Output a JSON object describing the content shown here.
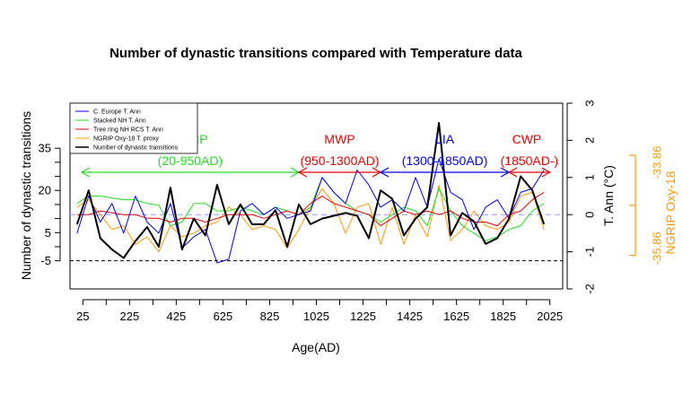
{
  "chart_data": {
    "type": "line",
    "title": "Number of dynastic transitions compared with Temperature data",
    "xlabel": "Age(AD)",
    "ylabel_left": "Number of dynastic transitions",
    "ylabel_right": "T. Ann (°C)",
    "ylabel_right2": "NGRIP Oxy-18",
    "xlim": [
      -30,
      2080
    ],
    "ylim_left": [
      -15,
      51
    ],
    "ylim_right": [
      -2,
      3
    ],
    "xticks": [
      "25",
      "225",
      "425",
      "625",
      "825",
      "1025",
      "1225",
      "1425",
      "1625",
      "1825",
      "2025"
    ],
    "yticks_left": [
      "-5",
      "5",
      "20",
      "35"
    ],
    "yticks_right": [
      "-2",
      "-1",
      "0",
      "1",
      "2",
      "3"
    ],
    "yticks_right2": [
      "-35.86",
      "-33.86"
    ],
    "colors": {
      "europe": "#0000ee",
      "stacked": "#22dd22",
      "treering": "#ee0000",
      "ngrip": "#ff9900",
      "dynastic": "#000000",
      "ngrip_axis": "#ff9900",
      "reference_line": "#9999ff"
    },
    "legend": {
      "placement": "top-left",
      "entries": [
        "C. Europe T. Ann",
        "Stacked NH T. Ann",
        "Tree ring NH RCS T. Ann",
        "NGRIP Oxy-18 T. proxy",
        "Number of dynastic transitions"
      ]
    },
    "periods": [
      {
        "name": "DACP",
        "range_label": "(20-950AD)",
        "start": 20,
        "end": 950,
        "color": "#22dd22"
      },
      {
        "name": "MWP",
        "range_label": "(950-1300AD)",
        "start": 950,
        "end": 1300,
        "color": "#ee0000"
      },
      {
        "name": "LIA",
        "range_label": "(1300-1850AD)",
        "start": 1300,
        "end": 1850,
        "color": "#0000ee"
      },
      {
        "name": "CWP",
        "range_label": "(1850AD-)",
        "start": 1850,
        "end": 2025,
        "color": "#ee0000"
      }
    ],
    "reference_lines": {
      "dynastic_zero": -5,
      "temperature_zero": 0
    },
    "x": [
      0,
      50,
      100,
      150,
      200,
      250,
      300,
      350,
      400,
      450,
      500,
      550,
      600,
      650,
      700,
      750,
      800,
      850,
      900,
      950,
      1000,
      1050,
      1100,
      1150,
      1200,
      1250,
      1300,
      1350,
      1400,
      1450,
      1500,
      1550,
      1600,
      1650,
      1700,
      1750,
      1800,
      1850,
      1900,
      1950,
      2000
    ],
    "series": [
      {
        "name": "Number of dynastic transitions",
        "axis": "left",
        "values": [
          8,
          20,
          3,
          -1,
          -4,
          2,
          7,
          0,
          21,
          -1,
          10,
          4,
          22,
          8,
          15,
          8,
          8,
          13,
          0,
          15,
          8,
          10,
          11,
          12,
          11,
          3,
          20,
          17,
          4,
          10,
          14,
          44,
          4,
          12,
          9,
          1,
          3,
          10,
          25,
          20,
          8
        ]
      },
      {
        "name": "C. Europe T. Ann",
        "axis": "right",
        "values": [
          -0.5,
          0.5,
          -0.2,
          0.3,
          -0.5,
          0.5,
          -0.2,
          -0.5,
          0.3,
          -0.9,
          -0.6,
          -0.4,
          -1.3,
          -1.2,
          0.1,
          0.3,
          0.0,
          0.2,
          -0.1,
          0.0,
          0.1,
          1.0,
          0.6,
          0.3,
          1.2,
          0.8,
          0.2,
          0.4,
          0.1,
          1.0,
          0.2,
          1.5,
          0.6,
          0.4,
          -0.4,
          0.2,
          0.4,
          -0.1,
          0.6,
          0.7,
          1.2
        ]
      },
      {
        "name": "Stacked NH T. Ann",
        "axis": "right",
        "values": [
          0.3,
          0.5,
          0.5,
          0.45,
          0.4,
          0.4,
          0.3,
          0.25,
          -0.3,
          -0.2,
          0.3,
          0.3,
          0.1,
          0.1,
          0.2,
          0.1,
          0.0,
          0.2,
          0.1,
          0.0,
          0.2,
          1.0,
          0.6,
          0.3,
          0.1,
          0.0,
          -0.2,
          0.0,
          0.2,
          0.1,
          -0.3,
          0.7,
          0.1,
          -0.3,
          -0.5,
          -0.7,
          -0.6,
          -0.4,
          -0.3,
          0.1,
          0.3
        ]
      },
      {
        "name": "Tree ring NH RCS T. Ann",
        "axis": "right",
        "values": [
          0.0,
          0.0,
          0.1,
          0.05,
          0.0,
          0.0,
          -0.1,
          -0.1,
          -0.2,
          -0.1,
          -0.1,
          -0.2,
          -0.1,
          0.0,
          0.0,
          0.0,
          -0.1,
          0.0,
          0.1,
          0.0,
          0.3,
          0.5,
          0.3,
          0.2,
          0.1,
          0.0,
          -0.3,
          -0.1,
          0.1,
          0.0,
          0.1,
          0.0,
          0.1,
          -0.1,
          -0.2,
          -0.2,
          -0.3,
          0.0,
          0.1,
          0.4,
          0.6
        ]
      },
      {
        "name": "NGRIP Oxy-18 T. proxy",
        "axis": "right",
        "values": [
          0.2,
          0.4,
          0.0,
          -0.4,
          -0.3,
          -0.8,
          -0.6,
          -1.0,
          -0.3,
          -0.6,
          -0.5,
          -0.3,
          -0.2,
          0.2,
          0.0,
          -0.4,
          -0.3,
          -0.4,
          -0.9,
          -0.4,
          0.2,
          0.7,
          0.3,
          -0.5,
          0.2,
          0.3,
          -0.8,
          0.2,
          -0.8,
          0.0,
          -0.6,
          0.8,
          -0.7,
          -0.4,
          0.1,
          -0.3,
          -0.4,
          -0.2,
          0.5,
          0.6,
          -0.4
        ]
      }
    ]
  }
}
